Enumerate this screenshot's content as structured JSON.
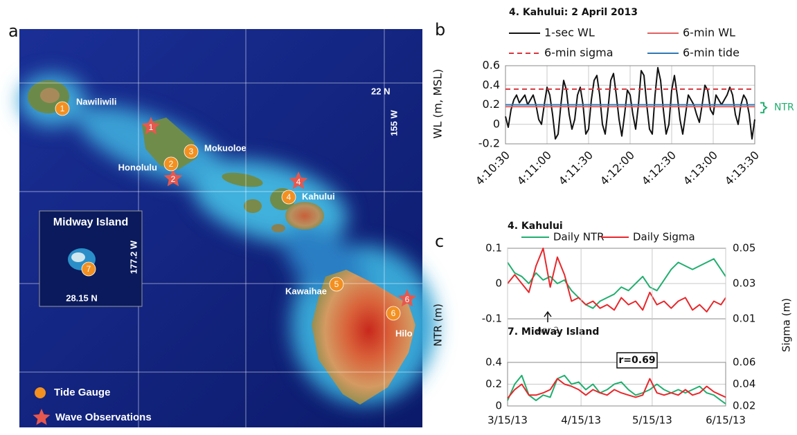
{
  "map": {
    "panel_label": "a",
    "lat_label": "22 N",
    "lon_label": "155 W",
    "tide_gauges": [
      {
        "number": "1",
        "name": "Nawiliwili"
      },
      {
        "number": "2",
        "name": "Honolulu"
      },
      {
        "number": "3",
        "name": "Mokuoloe"
      },
      {
        "number": "4",
        "name": "Kahului"
      },
      {
        "number": "5",
        "name": "Kawaihae"
      },
      {
        "number": "6",
        "name": "Hilo"
      },
      {
        "number": "7"
      }
    ],
    "wave_observations": [
      "1",
      "2",
      "4",
      "6"
    ],
    "inset": {
      "title": "Midway Island",
      "lon_label": "177.2 W",
      "lat_label": "28.15 N"
    },
    "legend": [
      "Tide Gauge",
      "Wave Observations"
    ]
  },
  "chart_data": [
    {
      "type": "line",
      "panel_label": "b",
      "title": "4. Kahului: 2 April 2013",
      "ylabel": "WL (m, MSL)",
      "annotation": "NTR",
      "xlim": [
        15030,
        15210
      ],
      "xticks": [
        {
          "value": 15030,
          "label": "4:10:30"
        },
        {
          "value": 15060,
          "label": "4:11:00"
        },
        {
          "value": 15090,
          "label": "4:11:30"
        },
        {
          "value": 15120,
          "label": "4:12:00"
        },
        {
          "value": 15150,
          "label": "4:12:30"
        },
        {
          "value": 15180,
          "label": "4:13:00"
        },
        {
          "value": 15210,
          "label": "4:13:30"
        }
      ],
      "ylim": [
        -0.2,
        0.6
      ],
      "yticks": [
        -0.2,
        0,
        0.2,
        0.4,
        0.6
      ],
      "grid": true,
      "series": [
        {
          "name": "1-sec WL",
          "color": "#111111",
          "x": [
            15030,
            15032,
            15034,
            15036,
            15038,
            15040,
            15042,
            15044,
            15046,
            15048,
            15050,
            15052,
            15054,
            15056,
            15058,
            15060,
            15062,
            15064,
            15066,
            15068,
            15070,
            15072,
            15074,
            15076,
            15078,
            15080,
            15082,
            15084,
            15086,
            15088,
            15090,
            15092,
            15094,
            15096,
            15098,
            15100,
            15102,
            15104,
            15106,
            15108,
            15110,
            15112,
            15114,
            15116,
            15118,
            15120,
            15122,
            15124,
            15126,
            15128,
            15130,
            15132,
            15134,
            15136,
            15138,
            15140,
            15142,
            15144,
            15146,
            15148,
            15150,
            15152,
            15154,
            15156,
            15158,
            15160,
            15162,
            15164,
            15166,
            15168,
            15170,
            15172,
            15174,
            15176,
            15178,
            15180,
            15182,
            15184,
            15186,
            15188,
            15190,
            15192,
            15194,
            15196,
            15198,
            15200,
            15202,
            15204,
            15206,
            15208,
            15210
          ],
          "values": [
            0.08,
            -0.03,
            0.15,
            0.25,
            0.3,
            0.22,
            0.26,
            0.3,
            0.2,
            0.25,
            0.3,
            0.2,
            0.05,
            0.0,
            0.2,
            0.38,
            0.3,
            0.1,
            -0.15,
            -0.1,
            0.2,
            0.45,
            0.35,
            0.1,
            -0.05,
            0.05,
            0.3,
            0.38,
            0.2,
            -0.1,
            -0.05,
            0.25,
            0.45,
            0.5,
            0.3,
            0.0,
            -0.1,
            0.15,
            0.45,
            0.52,
            0.3,
            0.05,
            -0.12,
            0.1,
            0.35,
            0.3,
            0.1,
            -0.05,
            0.2,
            0.55,
            0.5,
            0.2,
            -0.05,
            -0.1,
            0.3,
            0.58,
            0.45,
            0.15,
            -0.1,
            0.0,
            0.35,
            0.5,
            0.3,
            0.05,
            -0.1,
            0.1,
            0.3,
            0.25,
            0.2,
            0.1,
            0.02,
            0.2,
            0.4,
            0.35,
            0.15,
            0.1,
            0.3,
            0.25,
            0.2,
            0.25,
            0.3,
            0.38,
            0.3,
            0.1,
            0.0,
            0.2,
            0.3,
            0.25,
            0.1,
            -0.15,
            0.05
          ]
        },
        {
          "name": "6-min WL",
          "color": "#e06060",
          "x": [
            15030,
            15210
          ],
          "values": [
            0.18,
            0.18
          ]
        },
        {
          "name": "6-min sigma",
          "color": "#d9343c",
          "linestyle": "dashed",
          "x": [
            15030,
            15210
          ],
          "values": [
            0.36,
            0.36
          ]
        },
        {
          "name": "6-min tide",
          "color": "#2f78b5",
          "x": [
            15030,
            15210
          ],
          "values": [
            0.2,
            0.2
          ]
        }
      ]
    },
    {
      "type": "line",
      "panel_label": "c",
      "title": "4. Kahului",
      "ylabel": "NTR (m)",
      "y2label": "Sigma (m)",
      "annotation": "Apr 2",
      "x": [
        "3/15/13",
        "3/18/13",
        "3/21/13",
        "3/24/13",
        "3/27/13",
        "3/30/13",
        "4/2/13",
        "4/5/13",
        "4/8/13",
        "4/11/13",
        "4/14/13",
        "4/17/13",
        "4/20/13",
        "4/23/13",
        "4/26/13",
        "4/29/13",
        "5/2/13",
        "5/5/13",
        "5/8/13",
        "5/11/13",
        "5/14/13",
        "5/17/13",
        "5/20/13",
        "5/23/13",
        "5/26/13",
        "5/29/13",
        "6/1/13",
        "6/4/13",
        "6/7/13",
        "6/10/13",
        "6/13/13",
        "6/15/13"
      ],
      "xlim": [
        "3/15/13",
        "6/15/13"
      ],
      "ylim": [
        -0.1,
        0.1
      ],
      "yticks": [
        -0.1,
        0,
        0.1
      ],
      "y2lim": [
        0.01,
        0.05
      ],
      "y2ticks": [
        0.01,
        0.03,
        0.05
      ],
      "grid": true,
      "series": [
        {
          "name": "Daily NTR",
          "color": "#1fae6e",
          "values": [
            0.06,
            0.03,
            0.02,
            0.0,
            0.03,
            0.01,
            0.02,
            0.0,
            0.01,
            -0.02,
            -0.04,
            -0.06,
            -0.07,
            -0.05,
            -0.04,
            -0.03,
            -0.01,
            -0.02,
            0.0,
            0.02,
            -0.01,
            -0.02,
            0.01,
            0.04,
            0.06,
            0.05,
            0.04,
            0.05,
            0.06,
            0.07,
            0.04,
            0.02
          ]
        },
        {
          "name": "Daily Sigma",
          "color": "#e8262a",
          "axis": "y2",
          "values": [
            0.03,
            0.035,
            0.03,
            0.025,
            0.04,
            0.05,
            0.028,
            0.045,
            0.035,
            0.02,
            0.022,
            0.018,
            0.02,
            0.016,
            0.018,
            0.015,
            0.022,
            0.018,
            0.02,
            0.015,
            0.025,
            0.018,
            0.02,
            0.016,
            0.02,
            0.022,
            0.015,
            0.018,
            0.014,
            0.02,
            0.018,
            0.022
          ]
        }
      ]
    },
    {
      "type": "line",
      "title": "7. Midway Island",
      "annotation": "r=0.69",
      "x": [
        "3/15/13",
        "3/18/13",
        "3/21/13",
        "3/24/13",
        "3/27/13",
        "3/30/13",
        "4/2/13",
        "4/5/13",
        "4/8/13",
        "4/11/13",
        "4/14/13",
        "4/17/13",
        "4/20/13",
        "4/23/13",
        "4/26/13",
        "4/29/13",
        "5/2/13",
        "5/5/13",
        "5/8/13",
        "5/11/13",
        "5/14/13",
        "5/17/13",
        "5/20/13",
        "5/23/13",
        "5/26/13",
        "5/29/13",
        "6/1/13",
        "6/4/13",
        "6/7/13",
        "6/10/13",
        "6/13/13",
        "6/15/13"
      ],
      "xlim": [
        "3/15/13",
        "6/15/13"
      ],
      "xticks": [
        "3/15/13",
        "4/15/13",
        "5/15/13",
        "6/15/13"
      ],
      "ylim": [
        0,
        0.4
      ],
      "yticks": [
        0,
        0.2,
        0.4
      ],
      "y2lim": [
        0.02,
        0.06
      ],
      "y2ticks": [
        0.02,
        0.04,
        0.06
      ],
      "grid": true,
      "series": [
        {
          "color": "#1fae6e",
          "values": [
            0.05,
            0.2,
            0.28,
            0.1,
            0.05,
            0.1,
            0.08,
            0.25,
            0.28,
            0.2,
            0.22,
            0.15,
            0.2,
            0.12,
            0.15,
            0.2,
            0.22,
            0.15,
            0.1,
            0.12,
            0.15,
            0.2,
            0.15,
            0.12,
            0.15,
            0.12,
            0.15,
            0.18,
            0.12,
            0.1,
            0.05,
            0.02
          ]
        },
        {
          "color": "#e8262a",
          "axis": "y2",
          "values": [
            0.027,
            0.035,
            0.04,
            0.03,
            0.03,
            0.032,
            0.035,
            0.045,
            0.04,
            0.038,
            0.035,
            0.03,
            0.035,
            0.032,
            0.03,
            0.035,
            0.032,
            0.03,
            0.028,
            0.03,
            0.045,
            0.032,
            0.03,
            0.032,
            0.03,
            0.035,
            0.03,
            0.032,
            0.038,
            0.033,
            0.03,
            0.028
          ]
        }
      ]
    }
  ]
}
